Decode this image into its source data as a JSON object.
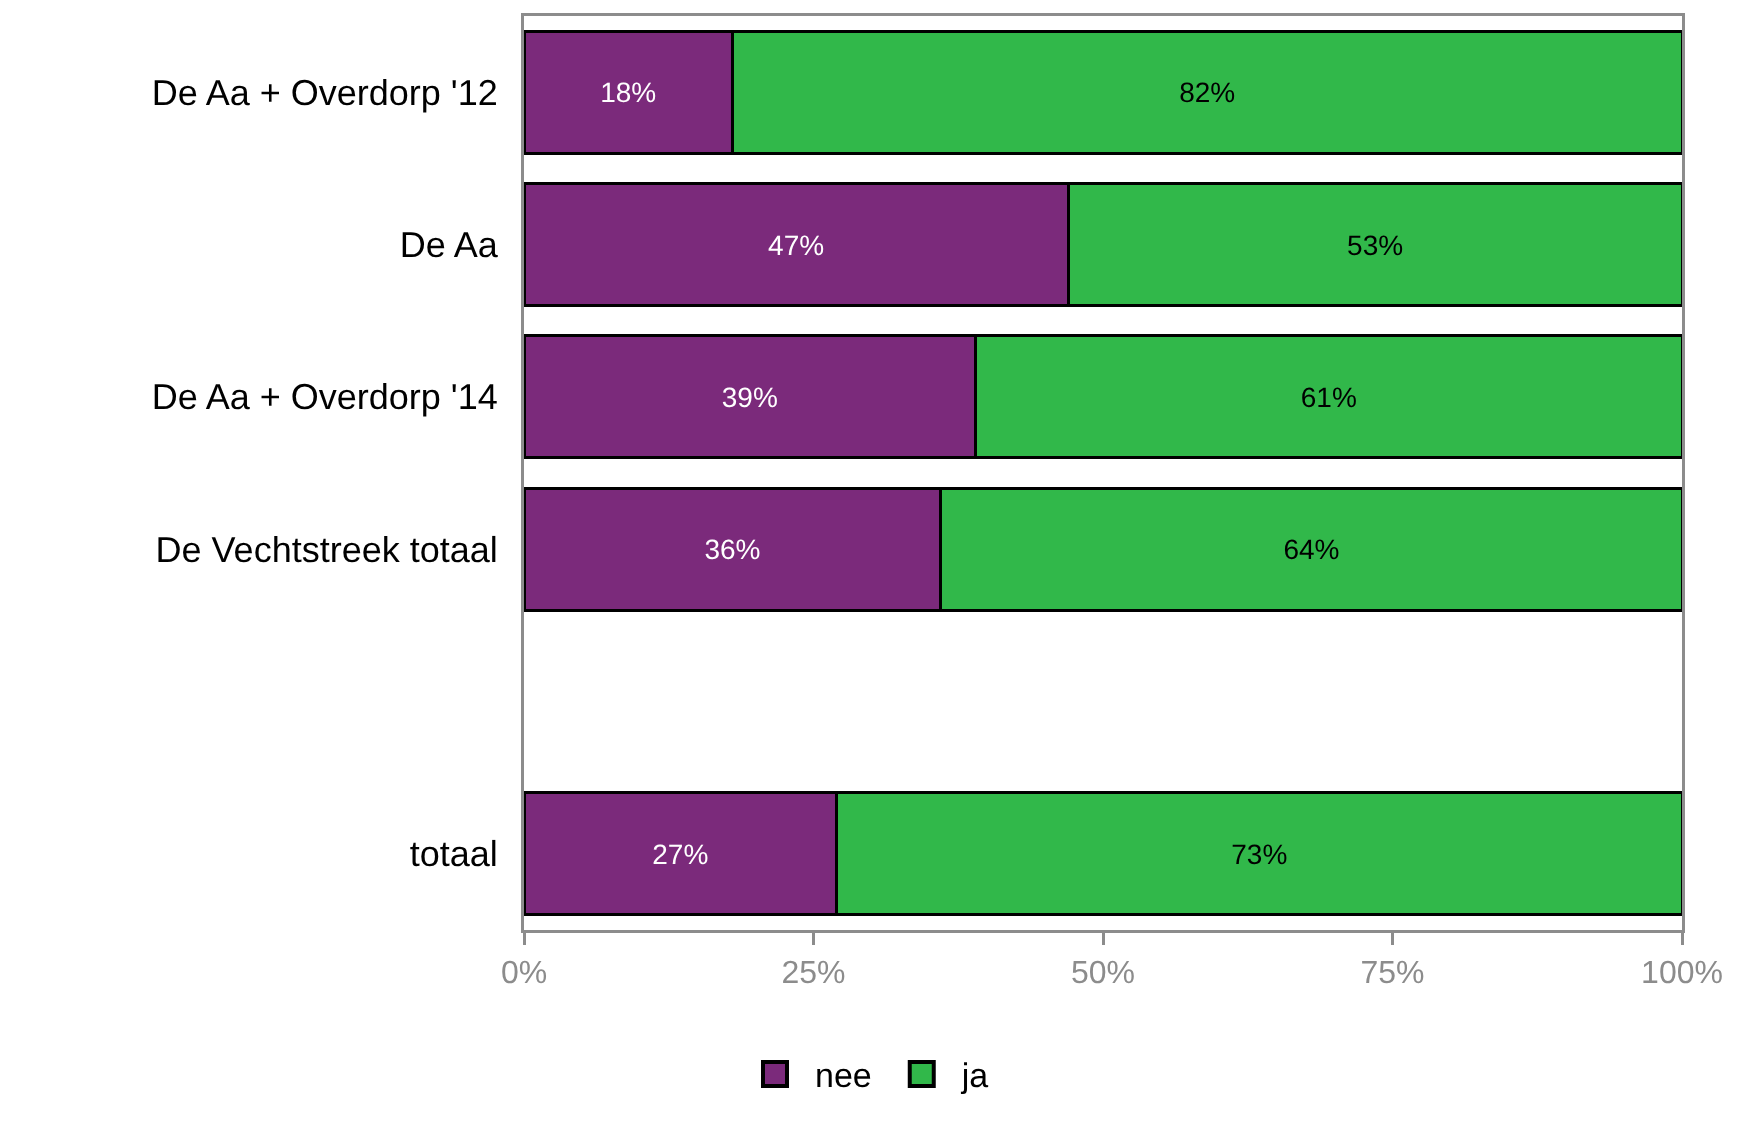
{
  "chart_data": {
    "type": "bar",
    "orientation": "horizontal",
    "stacked": true,
    "categories": [
      "De Aa + Overdorp '12",
      "De Aa",
      "De Aa + Overdorp '14",
      "De Vechtstreek totaal",
      null,
      "totaal"
    ],
    "series": [
      {
        "name": "nee",
        "color": "#7b2a7b",
        "values": [
          18,
          47,
          39,
          36,
          null,
          27
        ],
        "value_labels": [
          "18%",
          "47%",
          "39%",
          "36%",
          null,
          "27%"
        ]
      },
      {
        "name": "ja",
        "color": "#31b84a",
        "values": [
          82,
          53,
          61,
          64,
          null,
          73
        ],
        "value_labels": [
          "82%",
          "53%",
          "61%",
          "64%",
          null,
          "73%"
        ]
      }
    ],
    "xlim": [
      0,
      100
    ],
    "xticks": [
      {
        "value": 0,
        "label": "0%"
      },
      {
        "value": 25,
        "label": "25%"
      },
      {
        "value": 50,
        "label": "50%"
      },
      {
        "value": 75,
        "label": "75%"
      },
      {
        "value": 100,
        "label": "100%"
      }
    ],
    "legend": "bottom"
  }
}
